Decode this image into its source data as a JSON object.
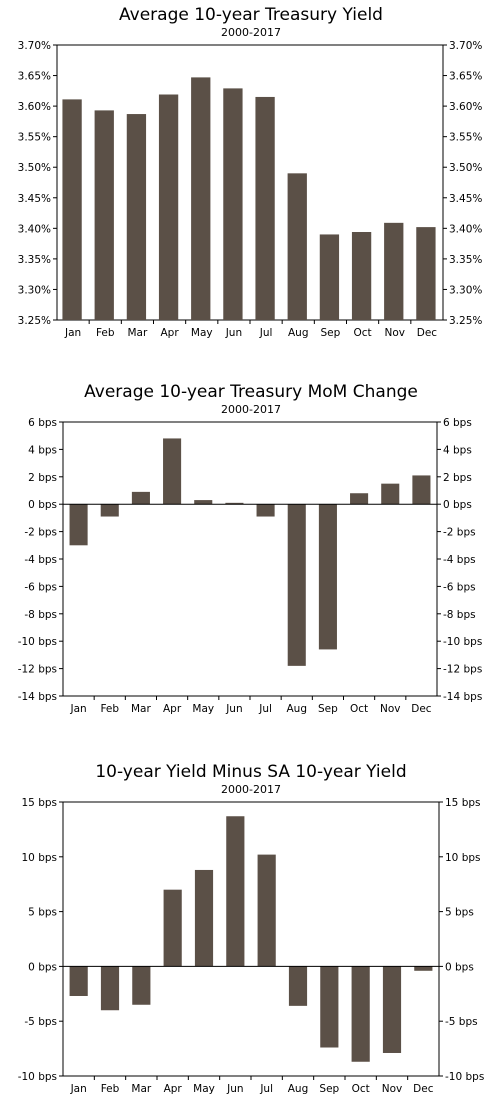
{
  "chart_data": [
    {
      "type": "bar",
      "title": "Average 10-year Treasury Yield",
      "subtitle": "2000-2017",
      "categories": [
        "Jan",
        "Feb",
        "Mar",
        "Apr",
        "May",
        "Jun",
        "Jul",
        "Aug",
        "Sep",
        "Oct",
        "Nov",
        "Dec"
      ],
      "values": [
        3.611,
        3.593,
        3.587,
        3.619,
        3.647,
        3.629,
        3.615,
        3.49,
        3.39,
        3.394,
        3.409,
        3.402
      ],
      "ylim": [
        3.25,
        3.7
      ],
      "yticks": [
        3.25,
        3.3,
        3.35,
        3.4,
        3.45,
        3.5,
        3.55,
        3.6,
        3.65,
        3.7
      ],
      "ytick_labels": [
        "3.25%",
        "3.30%",
        "3.35%",
        "3.40%",
        "3.45%",
        "3.50%",
        "3.55%",
        "3.60%",
        "3.65%",
        "3.70%"
      ],
      "bar_color": "#5b5047",
      "grid": false
    },
    {
      "type": "bar",
      "title": "Average 10-year Treasury MoM Change",
      "subtitle": "2000-2017",
      "categories": [
        "Jan",
        "Feb",
        "Mar",
        "Apr",
        "May",
        "Jun",
        "Jul",
        "Aug",
        "Sep",
        "Oct",
        "Nov",
        "Dec"
      ],
      "values": [
        -3.0,
        -0.9,
        0.9,
        4.8,
        0.3,
        0.1,
        -0.9,
        -11.8,
        -10.6,
        0.8,
        1.5,
        2.1
      ],
      "ylim": [
        -14,
        6
      ],
      "yticks": [
        -14,
        -12,
        -10,
        -8,
        -6,
        -4,
        -2,
        0,
        2,
        4,
        6
      ],
      "ytick_labels": [
        "-14 bps",
        "-12 bps",
        "-10 bps",
        "-8 bps",
        "-6 bps",
        "-4 bps",
        "-2 bps",
        "0 bps",
        "2 bps",
        "4 bps",
        "6 bps"
      ],
      "bar_color": "#5b5047",
      "grid": false
    },
    {
      "type": "bar",
      "title": "10-year Yield Minus SA 10-year Yield",
      "subtitle": "2000-2017",
      "categories": [
        "Jan",
        "Feb",
        "Mar",
        "Apr",
        "May",
        "Jun",
        "Jul",
        "Aug",
        "Sep",
        "Oct",
        "Nov",
        "Dec"
      ],
      "values": [
        -2.7,
        -4.0,
        -3.5,
        7.0,
        8.8,
        13.7,
        10.2,
        -3.6,
        -7.4,
        -8.7,
        -7.9,
        -0.4
      ],
      "ylim": [
        -10,
        15
      ],
      "yticks": [
        -10,
        -5,
        0,
        5,
        10,
        15
      ],
      "ytick_labels": [
        "-10 bps",
        "-5 bps",
        "0 bps",
        "5 bps",
        "10 bps",
        "15 bps"
      ],
      "bar_color": "#5b5047",
      "grid": false
    }
  ]
}
